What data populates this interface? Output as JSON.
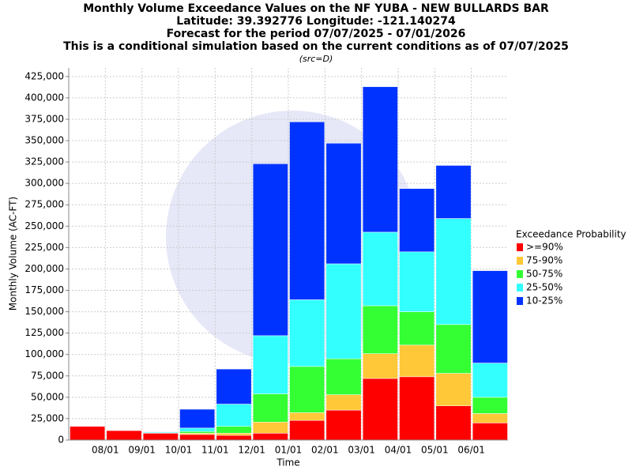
{
  "chart_data": {
    "type": "stacked_bar",
    "title": [
      "Monthly Volume Exceedance Values on the NF YUBA - NEW BULLARDS BAR",
      "Latitude: 39.392776 Longitude: -121.140274",
      "Forecast for the period 07/07/2025 - 07/01/2026",
      "This is a conditional simulation based on the current conditions as of 07/07/2025"
    ],
    "subtitle": "(src=D)",
    "x_label": "Time",
    "y_label": "Monthly Volume (AC-FT)",
    "legend_title": "Exceedance Probability",
    "legend_position": "right",
    "grid": true,
    "xticks": [
      "08/01",
      "09/01",
      "10/01",
      "11/01",
      "12/01",
      "01/01",
      "02/01",
      "03/01",
      "04/01",
      "05/01",
      "06/01"
    ],
    "ylim": [
      0,
      435000
    ],
    "yticks": [
      0,
      {
        "value": 25000,
        "label": "25,000"
      },
      {
        "value": 50000,
        "label": "50,000"
      },
      {
        "value": 75000,
        "label": "75,000"
      },
      {
        "value": 100000,
        "label": "100,000"
      },
      {
        "value": 125000,
        "label": "125,000"
      },
      {
        "value": 150000,
        "label": "150,000"
      },
      {
        "value": 175000,
        "label": "175,000"
      },
      {
        "value": 200000,
        "label": "200,000"
      },
      {
        "value": 225000,
        "label": "225,000"
      },
      {
        "value": 250000,
        "label": "250,000"
      },
      {
        "value": 275000,
        "label": "275,000"
      },
      {
        "value": 300000,
        "label": "300,000"
      },
      {
        "value": 325000,
        "label": "325,000"
      },
      {
        "value": 350000,
        "label": "350,000"
      },
      {
        "value": 375000,
        "label": "375,000"
      },
      {
        "value": 400000,
        "label": "400,000"
      },
      {
        "value": 425000,
        "label": "425,000"
      }
    ],
    "series": [
      {
        "name": ">=90%",
        "color": "#ff0000",
        "values": [
          16000,
          11000,
          8000,
          6500,
          5500,
          8000,
          23000,
          35000,
          72000,
          74000,
          40000,
          20000
        ]
      },
      {
        "name": "75-90%",
        "color": "#ffc838",
        "values": [
          0,
          0,
          0,
          1500,
          2500,
          13000,
          9000,
          18000,
          29000,
          37000,
          38000,
          11000
        ]
      },
      {
        "name": "50-75%",
        "color": "#33ff33",
        "values": [
          0,
          0,
          500,
          2000,
          8000,
          33000,
          54000,
          42000,
          56000,
          39000,
          57000,
          19000
        ]
      },
      {
        "name": "25-50%",
        "color": "#33ffff",
        "values": [
          0,
          0,
          1000,
          4000,
          26000,
          68000,
          78000,
          111000,
          86000,
          70000,
          124000,
          40000
        ]
      },
      {
        "name": "10-25%",
        "color": "#0033ff",
        "values": [
          0,
          0,
          500,
          22000,
          41000,
          201000,
          208000,
          141000,
          170000,
          74000,
          62000,
          108000
        ]
      }
    ]
  }
}
